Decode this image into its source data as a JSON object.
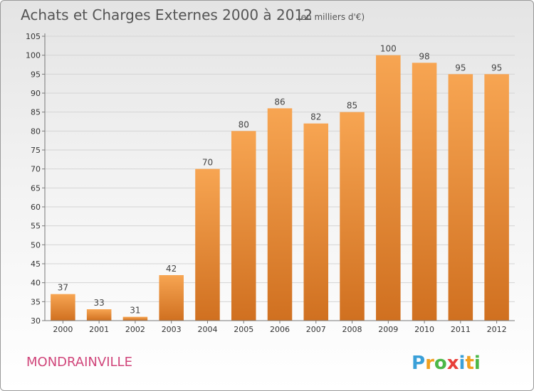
{
  "chart_data": {
    "type": "bar",
    "title": "Achats et Charges Externes 2000 à 2012",
    "unit": "(en milliers d'€)",
    "categories": [
      "2000",
      "2001",
      "2002",
      "2003",
      "2004",
      "2005",
      "2006",
      "2007",
      "2008",
      "2009",
      "2010",
      "2011",
      "2012"
    ],
    "values": [
      37,
      33,
      31,
      42,
      70,
      80,
      86,
      82,
      85,
      100,
      98,
      95,
      95
    ],
    "ylim": [
      30,
      105
    ],
    "yticks": [
      30,
      35,
      40,
      45,
      50,
      55,
      60,
      65,
      70,
      75,
      80,
      85,
      90,
      95,
      100,
      105
    ],
    "grid": true,
    "bar_color_top": "#f7a552",
    "bar_color_bottom": "#d07020"
  },
  "footer": {
    "town": "MONDRAINVILLE",
    "logo": {
      "letters": [
        "P",
        "r",
        "o",
        "x",
        "i",
        "t",
        "i"
      ],
      "colors": [
        "#3aa0d8",
        "#f0a020",
        "#4cb848",
        "#e8403a",
        "#3aa0d8",
        "#f0a020",
        "#4cb848"
      ]
    }
  }
}
